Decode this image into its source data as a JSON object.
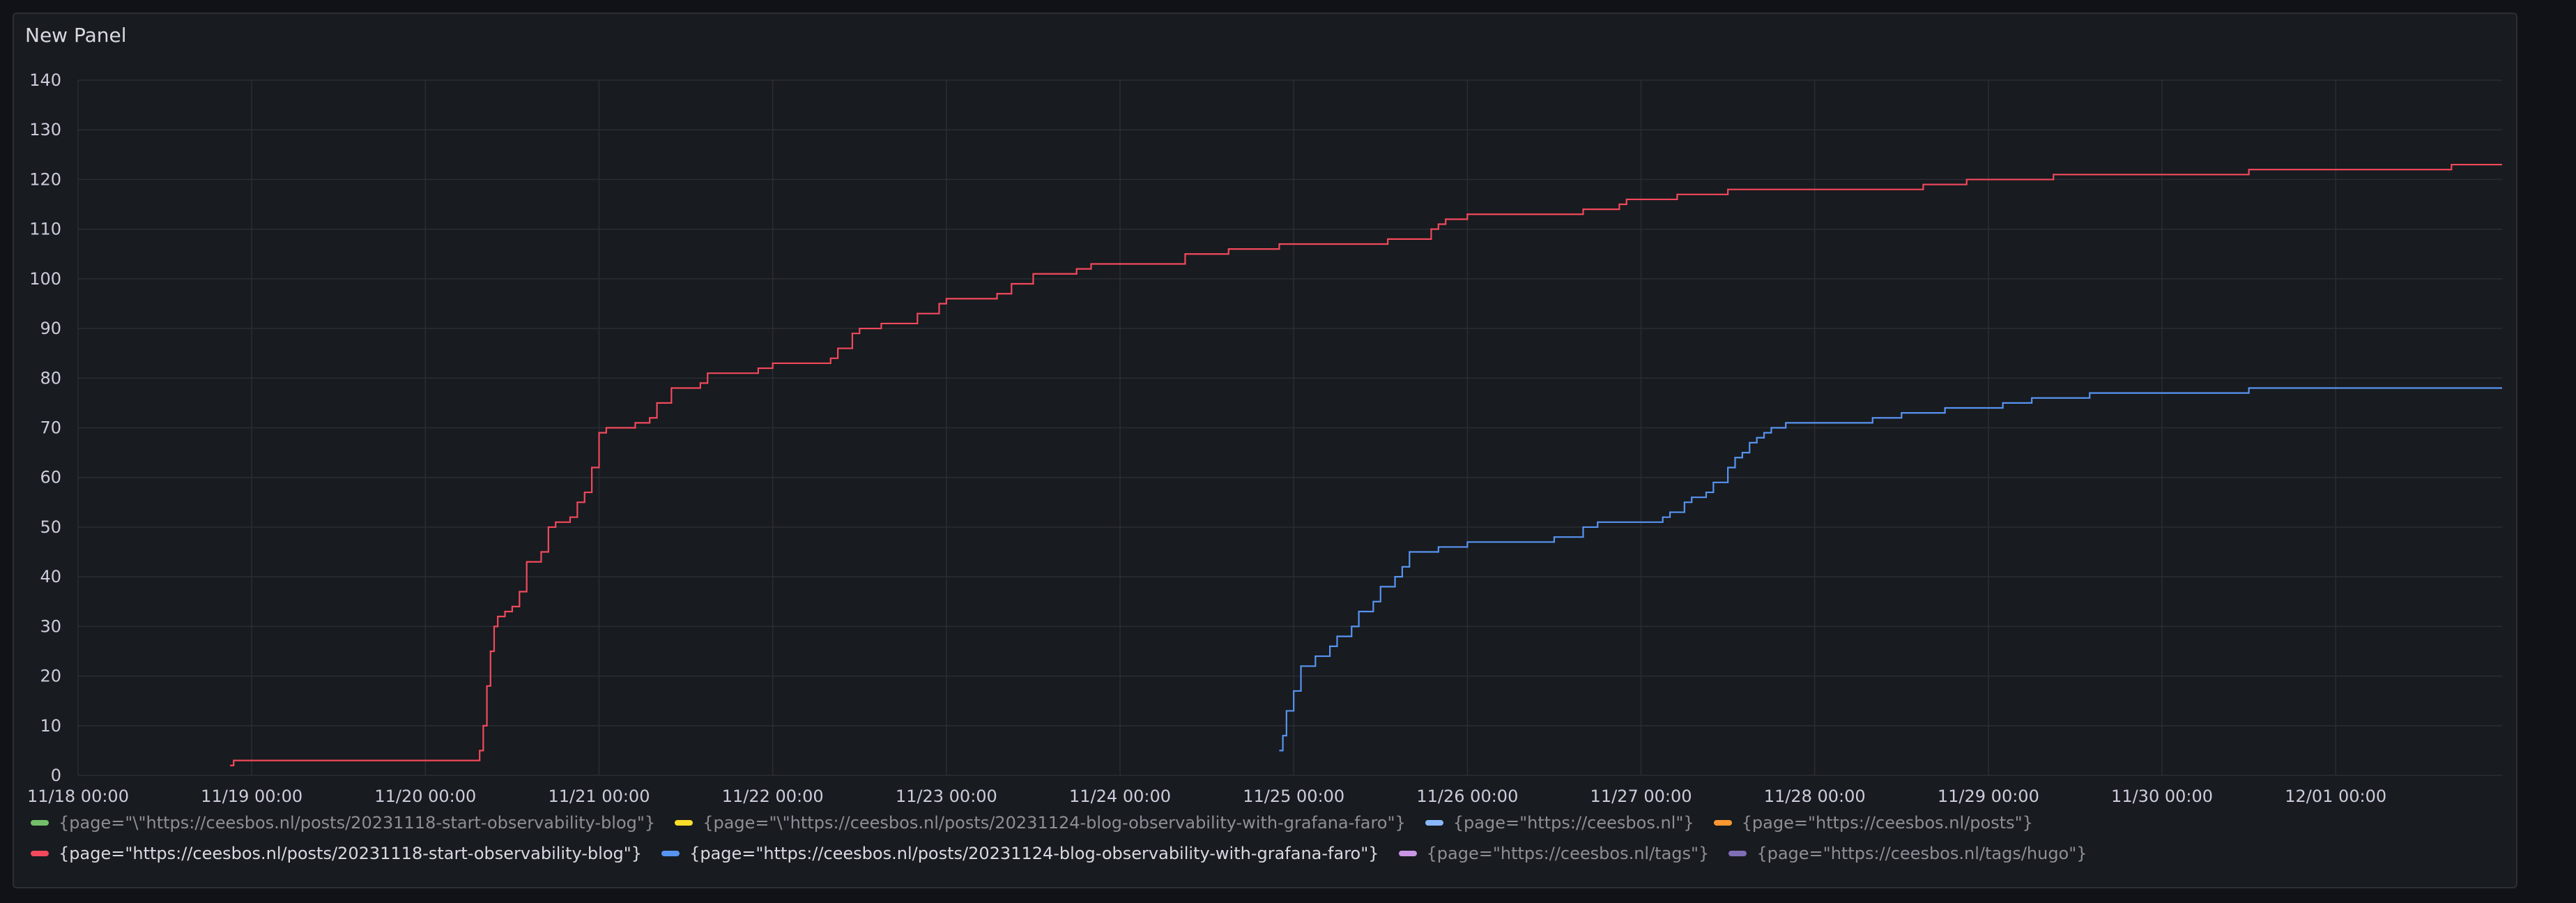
{
  "panel": {
    "title": "New Panel"
  },
  "chart_data": {
    "type": "line",
    "title": "New Panel",
    "xlabel": "",
    "ylabel": "",
    "x_type": "time",
    "x_ticks": [
      "11/18 00:00",
      "11/19 00:00",
      "11/20 00:00",
      "11/21 00:00",
      "11/22 00:00",
      "11/23 00:00",
      "11/24 00:00",
      "11/25 00:00",
      "11/26 00:00",
      "11/27 00:00",
      "11/28 00:00",
      "11/29 00:00",
      "11/30 00:00",
      "12/01 00:00"
    ],
    "xlim": [
      "2023-11-18T00:00",
      "2023-12-01T23:00"
    ],
    "ylim": [
      0,
      140
    ],
    "y_ticks": [
      0,
      10,
      20,
      30,
      40,
      50,
      60,
      70,
      80,
      90,
      100,
      110,
      120,
      130,
      140
    ],
    "grid": true,
    "legend_position": "bottom",
    "series": [
      {
        "name": "{page=\"\\\"https://ceesbos.nl/posts/20231118-start-observability-blog\"}",
        "color": "#73bf69",
        "points": []
      },
      {
        "name": "{page=\"\\\"https://ceesbos.nl/posts/20231124-blog-observability-with-grafana-faro\"}",
        "color": "#fade2a",
        "points": []
      },
      {
        "name": "{page=\"https://ceesbos.nl\"}",
        "color": "#8ab8ff",
        "points": []
      },
      {
        "name": "{page=\"https://ceesbos.nl/posts\"}",
        "color": "#ff9830",
        "points": []
      },
      {
        "name": "{page=\"https://ceesbos.nl/posts/20231118-start-observability-blog\"}",
        "color": "#f2495c",
        "highlight": true,
        "points": [
          [
            "2023-11-18T21:00",
            2
          ],
          [
            "2023-11-18T21:30",
            3
          ],
          [
            "2023-11-20T07:00",
            3
          ],
          [
            "2023-11-20T07:30",
            5
          ],
          [
            "2023-11-20T08:00",
            10
          ],
          [
            "2023-11-20T08:30",
            18
          ],
          [
            "2023-11-20T09:00",
            25
          ],
          [
            "2023-11-20T09:30",
            30
          ],
          [
            "2023-11-20T10:00",
            32
          ],
          [
            "2023-11-20T11:00",
            33
          ],
          [
            "2023-11-20T12:00",
            34
          ],
          [
            "2023-11-20T13:00",
            37
          ],
          [
            "2023-11-20T14:00",
            43
          ],
          [
            "2023-11-20T16:00",
            45
          ],
          [
            "2023-11-20T17:00",
            50
          ],
          [
            "2023-11-20T18:00",
            51
          ],
          [
            "2023-11-20T20:00",
            52
          ],
          [
            "2023-11-20T21:00",
            55
          ],
          [
            "2023-11-20T22:00",
            57
          ],
          [
            "2023-11-20T23:00",
            62
          ],
          [
            "2023-11-21T00:00",
            69
          ],
          [
            "2023-11-21T01:00",
            70
          ],
          [
            "2023-11-21T05:00",
            71
          ],
          [
            "2023-11-21T07:00",
            72
          ],
          [
            "2023-11-21T08:00",
            75
          ],
          [
            "2023-11-21T10:00",
            78
          ],
          [
            "2023-11-21T14:00",
            79
          ],
          [
            "2023-11-21T15:00",
            81
          ],
          [
            "2023-11-21T22:00",
            82
          ],
          [
            "2023-11-22T00:00",
            83
          ],
          [
            "2023-11-22T08:00",
            84
          ],
          [
            "2023-11-22T09:00",
            86
          ],
          [
            "2023-11-22T11:00",
            89
          ],
          [
            "2023-11-22T12:00",
            90
          ],
          [
            "2023-11-22T15:00",
            91
          ],
          [
            "2023-11-22T20:00",
            93
          ],
          [
            "2023-11-22T23:00",
            95
          ],
          [
            "2023-11-23T00:00",
            96
          ],
          [
            "2023-11-23T07:00",
            97
          ],
          [
            "2023-11-23T09:00",
            99
          ],
          [
            "2023-11-23T12:00",
            101
          ],
          [
            "2023-11-23T18:00",
            102
          ],
          [
            "2023-11-23T20:00",
            103
          ],
          [
            "2023-11-24T09:00",
            105
          ],
          [
            "2023-11-24T15:00",
            106
          ],
          [
            "2023-11-24T22:00",
            107
          ],
          [
            "2023-11-25T13:00",
            108
          ],
          [
            "2023-11-25T19:00",
            110
          ],
          [
            "2023-11-25T20:00",
            111
          ],
          [
            "2023-11-25T21:00",
            112
          ],
          [
            "2023-11-26T00:00",
            113
          ],
          [
            "2023-11-26T16:00",
            114
          ],
          [
            "2023-11-26T21:00",
            115
          ],
          [
            "2023-11-26T22:00",
            116
          ],
          [
            "2023-11-27T05:00",
            117
          ],
          [
            "2023-11-27T12:00",
            118
          ],
          [
            "2023-11-28T15:00",
            119
          ],
          [
            "2023-11-28T21:00",
            120
          ],
          [
            "2023-11-29T09:00",
            121
          ],
          [
            "2023-11-30T12:00",
            122
          ],
          [
            "2023-12-01T16:00",
            123
          ],
          [
            "2023-12-01T23:00",
            123
          ]
        ]
      },
      {
        "name": "{page=\"https://ceesbos.nl/posts/20231124-blog-observability-with-grafana-faro\"}",
        "color": "#5794f2",
        "highlight": true,
        "points": [
          [
            "2023-11-24T22:00",
            5
          ],
          [
            "2023-11-24T22:30",
            8
          ],
          [
            "2023-11-24T23:00",
            13
          ],
          [
            "2023-11-25T00:00",
            17
          ],
          [
            "2023-11-25T01:00",
            22
          ],
          [
            "2023-11-25T03:00",
            24
          ],
          [
            "2023-11-25T05:00",
            26
          ],
          [
            "2023-11-25T06:00",
            28
          ],
          [
            "2023-11-25T08:00",
            30
          ],
          [
            "2023-11-25T09:00",
            33
          ],
          [
            "2023-11-25T11:00",
            35
          ],
          [
            "2023-11-25T12:00",
            38
          ],
          [
            "2023-11-25T14:00",
            40
          ],
          [
            "2023-11-25T15:00",
            42
          ],
          [
            "2023-11-25T16:00",
            45
          ],
          [
            "2023-11-25T20:00",
            46
          ],
          [
            "2023-11-26T00:00",
            47
          ],
          [
            "2023-11-26T12:00",
            48
          ],
          [
            "2023-11-26T16:00",
            50
          ],
          [
            "2023-11-26T18:00",
            51
          ],
          [
            "2023-11-27T03:00",
            52
          ],
          [
            "2023-11-27T04:00",
            53
          ],
          [
            "2023-11-27T06:00",
            55
          ],
          [
            "2023-11-27T07:00",
            56
          ],
          [
            "2023-11-27T09:00",
            57
          ],
          [
            "2023-11-27T10:00",
            59
          ],
          [
            "2023-11-27T12:00",
            62
          ],
          [
            "2023-11-27T13:00",
            64
          ],
          [
            "2023-11-27T14:00",
            65
          ],
          [
            "2023-11-27T15:00",
            67
          ],
          [
            "2023-11-27T16:00",
            68
          ],
          [
            "2023-11-27T17:00",
            69
          ],
          [
            "2023-11-27T18:00",
            70
          ],
          [
            "2023-11-27T20:00",
            71
          ],
          [
            "2023-11-28T08:00",
            72
          ],
          [
            "2023-11-28T12:00",
            73
          ],
          [
            "2023-11-28T18:00",
            74
          ],
          [
            "2023-11-29T02:00",
            75
          ],
          [
            "2023-11-29T06:00",
            76
          ],
          [
            "2023-11-29T14:00",
            77
          ],
          [
            "2023-11-30T12:00",
            78
          ],
          [
            "2023-12-01T23:00",
            78
          ]
        ]
      },
      {
        "name": "{page=\"https://ceesbos.nl/tags\"}",
        "color": "#ca95e5",
        "points": []
      },
      {
        "name": "{page=\"https://ceesbos.nl/tags/hugo\"}",
        "color": "#806eb7",
        "points": []
      }
    ]
  }
}
